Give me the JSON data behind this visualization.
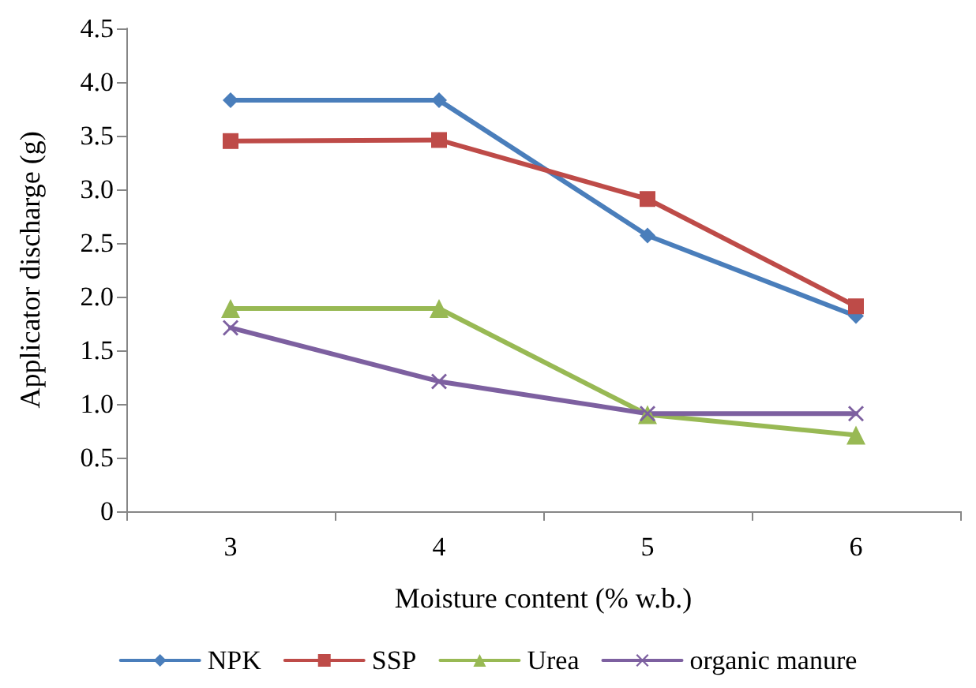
{
  "chart_data": {
    "type": "line",
    "xlabel": "Moisture content (% w.b.)",
    "ylabel": "Applicator discharge (g)",
    "categories": [
      "3",
      "4",
      "5",
      "6"
    ],
    "series": [
      {
        "name": "NPK",
        "color": "#4a7ebb",
        "marker": "diamond",
        "values": [
          3.83,
          3.83,
          2.57,
          1.82
        ]
      },
      {
        "name": "SSP",
        "color": "#be4b48",
        "marker": "square",
        "values": [
          3.45,
          3.46,
          2.91,
          1.91
        ]
      },
      {
        "name": "Urea",
        "color": "#98b954",
        "marker": "triangle",
        "values": [
          1.89,
          1.89,
          0.9,
          0.71
        ]
      },
      {
        "name": "organic manure",
        "color": "#7d60a0",
        "marker": "cross",
        "values": [
          1.71,
          1.21,
          0.91,
          0.91
        ]
      }
    ],
    "ylim": [
      0,
      4.5
    ],
    "yticks": [
      0,
      0.5,
      {
        "value": 1,
        "label": "1.0"
      },
      1.5,
      {
        "value": 2,
        "label": "2.0"
      },
      2.5,
      {
        "value": 3,
        "label": "3.0"
      },
      3.5,
      {
        "value": 4,
        "label": "4.0"
      },
      4.5
    ],
    "grid": false,
    "legend": "bottom",
    "line_style": "solid"
  }
}
